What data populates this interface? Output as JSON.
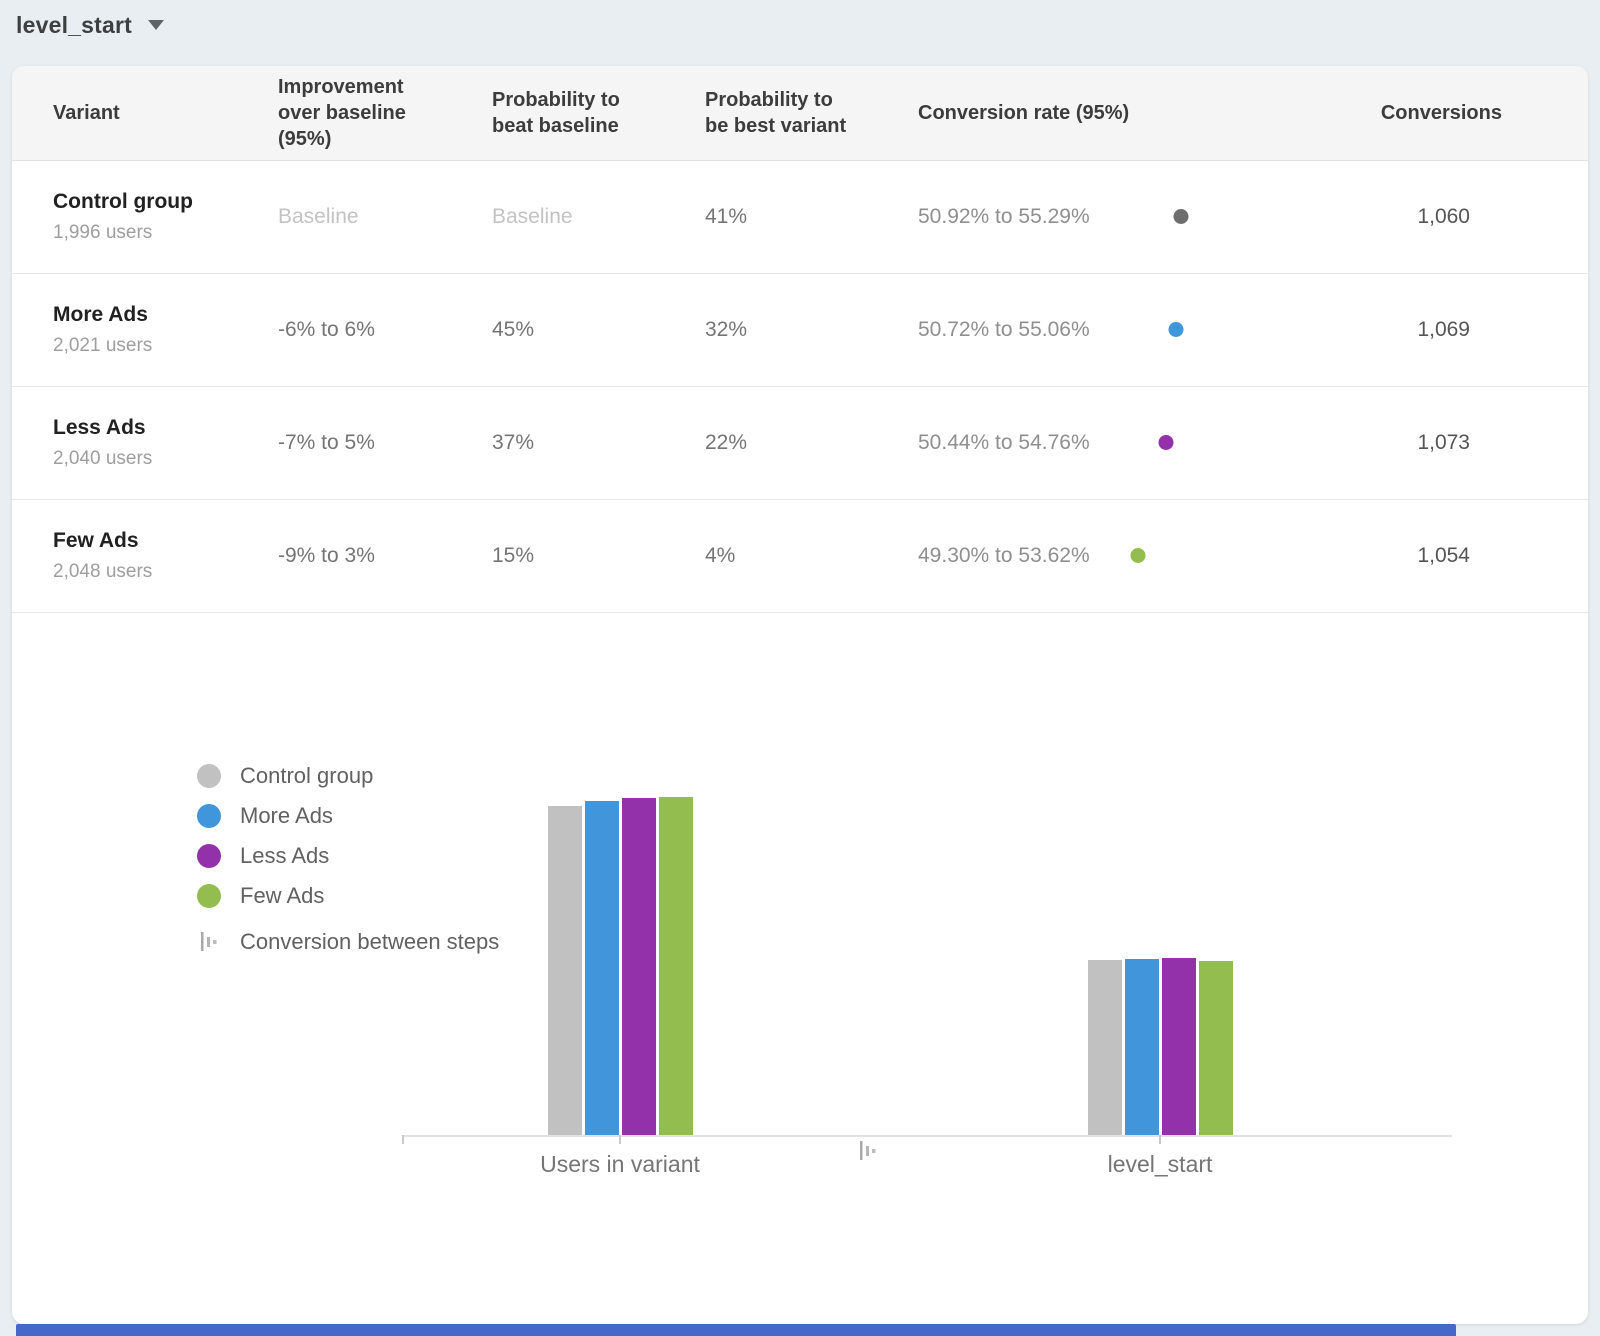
{
  "colors": {
    "page_bg": "#e9eef2",
    "header_bg": "#f5f5f5",
    "bottom_bar": "#4668c8"
  },
  "dropdown": {
    "label": "level_start"
  },
  "table": {
    "columns": [
      "Variant",
      "Improvement over baseline (95%)",
      "Probability to beat baseline",
      "Probability to be best variant",
      "Conversion rate (95%)",
      "Conversions"
    ],
    "rows": [
      {
        "name": "Control group",
        "users": "1,996 users",
        "improvement": "Baseline",
        "improvement_is_baseline": true,
        "prob_beat": "Baseline",
        "prob_beat_is_baseline": true,
        "prob_best": "41%",
        "conv_rate": "50.92% to 55.29%",
        "conversions": "1,060",
        "interval": {
          "line": "#d8d8d8",
          "band": "#e9e9e9",
          "dot": "#6e6e6e",
          "offset": 43,
          "dot_pos": 49
        }
      },
      {
        "name": "More Ads",
        "users": "2,021 users",
        "improvement": "-6% to 6%",
        "improvement_is_baseline": false,
        "prob_beat": "45%",
        "prob_beat_is_baseline": false,
        "prob_best": "32%",
        "conv_rate": "50.72% to 55.06%",
        "conversions": "1,069",
        "interval": {
          "line": "#a5d2f3",
          "band": "#cbe6fa",
          "dot": "#3e97da",
          "offset": 38,
          "dot_pos": 50
        }
      },
      {
        "name": "Less Ads",
        "users": "2,040 users",
        "improvement": "-7% to 5%",
        "improvement_is_baseline": false,
        "prob_beat": "37%",
        "prob_beat_is_baseline": false,
        "prob_best": "22%",
        "conv_rate": "50.44% to 54.76%",
        "conversions": "1,073",
        "interval": {
          "line": "#d9b9e7",
          "band": "#ecd9f3",
          "dot": "#9331aa",
          "offset": 28,
          "dot_pos": 50
        }
      },
      {
        "name": "Few Ads",
        "users": "2,048 users",
        "improvement": "-9% to 3%",
        "improvement_is_baseline": false,
        "prob_beat": "15%",
        "prob_beat_is_baseline": false,
        "prob_best": "4%",
        "conv_rate": "49.30% to 53.62%",
        "conversions": "1,054",
        "interval": {
          "line": "#cfe2b5",
          "band": "#e3eed3",
          "dot": "#93bd4f",
          "offset": 0,
          "dot_pos": 51
        }
      }
    ]
  },
  "chart_data": {
    "type": "bar",
    "categories": [
      "Users in variant",
      "level_start"
    ],
    "series": [
      {
        "name": "Control group",
        "color": "#c1c1c1",
        "values": [
          1996,
          1060
        ]
      },
      {
        "name": "More Ads",
        "color": "#4196db",
        "values": [
          2021,
          1069
        ]
      },
      {
        "name": "Less Ads",
        "color": "#9331aa",
        "values": [
          2040,
          1073
        ]
      },
      {
        "name": "Few Ads",
        "color": "#93bd4f",
        "values": [
          2048,
          1054
        ]
      }
    ],
    "ylim": [
      0,
      2048
    ],
    "grid": false,
    "legend_position": "left",
    "legend_extra": "Conversion between steps"
  }
}
